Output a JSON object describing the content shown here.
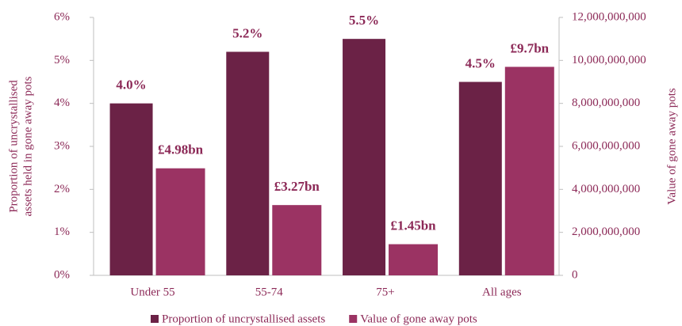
{
  "chart_data": {
    "type": "bar",
    "categories": [
      "Under 55",
      "55-74",
      "75+",
      "All ages"
    ],
    "series": [
      {
        "name": "Proportion of uncrystallised assets",
        "color": "#6b2246",
        "values": [
          4.0,
          5.2,
          5.5,
          4.5
        ],
        "value_labels": [
          "4.0%",
          "5.2%",
          "5.5%",
          "4.5%"
        ]
      },
      {
        "name": "Value of gone away pots",
        "color": "#9b3363",
        "axis": "y2",
        "values": [
          4980000000,
          3270000000,
          1450000000,
          9700000000
        ],
        "value_labels": [
          "£4.98bn",
          "£3.27bn",
          "£1.45bn",
          "£9.7bn"
        ]
      }
    ],
    "ylabel": [
      "Proportion of uncrystallised",
      "assets held in gone away pots"
    ],
    "y2label": "Value of gone away pots",
    "ylim": [
      0,
      6
    ],
    "yticks": [
      {
        "value": 0,
        "label": "0%"
      },
      {
        "value": 1,
        "label": "1%"
      },
      {
        "value": 2,
        "label": "2%"
      },
      {
        "value": 3,
        "label": "3%"
      },
      {
        "value": 4,
        "label": "4%"
      },
      {
        "value": 5,
        "label": "5%"
      },
      {
        "value": 6,
        "label": "6%"
      }
    ],
    "y2lim": [
      0,
      12000000000
    ],
    "y2ticks": [
      0,
      {
        "value": 2000000000,
        "label": "2,000,000,000"
      },
      {
        "value": 4000000000,
        "label": "4,000,000,000"
      },
      {
        "value": 6000000000,
        "label": "6,000,000,000"
      },
      {
        "value": 8000000000,
        "label": "8,000,000,000"
      },
      {
        "value": 10000000000,
        "label": "10,000,000,000"
      },
      {
        "value": 12000000000,
        "label": "12,000,000,000"
      }
    ],
    "legend": "bottom"
  }
}
